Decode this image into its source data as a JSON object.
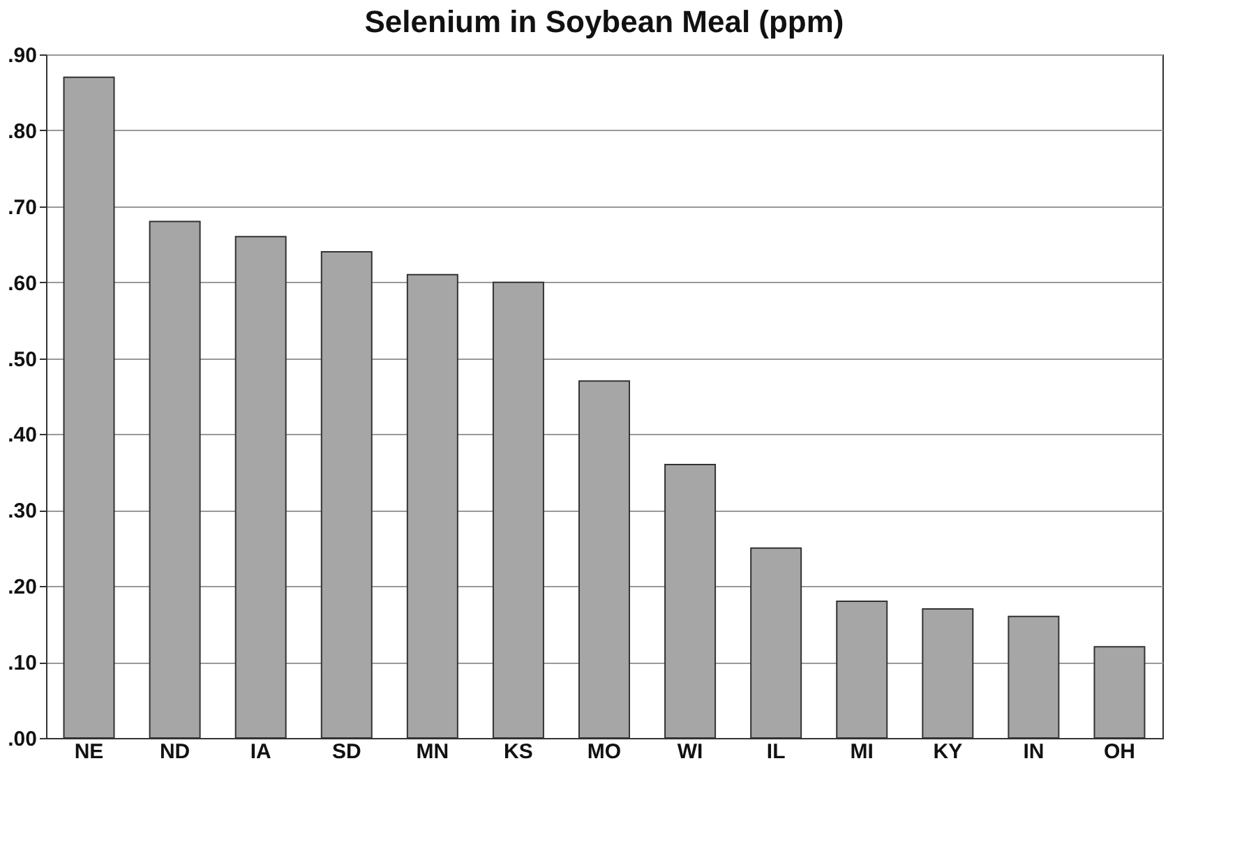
{
  "chart_data": {
    "type": "bar",
    "title": "Selenium in Soybean Meal (ppm)",
    "categories": [
      "NE",
      "ND",
      "IA",
      "SD",
      "MN",
      "KS",
      "MO",
      "WI",
      "IL",
      "MI",
      "KY",
      "IN",
      "OH"
    ],
    "values": [
      0.87,
      0.68,
      0.66,
      0.64,
      0.61,
      0.6,
      0.47,
      0.36,
      0.25,
      0.18,
      0.17,
      0.16,
      0.12
    ],
    "color": "#a6a6a6",
    "ylim": [
      0,
      0.9
    ],
    "yticks": [
      {
        "value": 0,
        "label": ".00"
      },
      {
        "value": 0.1,
        "label": ".10"
      },
      {
        "value": 0.2,
        "label": ".20"
      },
      {
        "value": 0.3,
        "label": ".30"
      },
      {
        "value": 0.4,
        "label": ".40"
      },
      {
        "value": 0.5,
        "label": ".50"
      },
      {
        "value": 0.6,
        "label": ".60"
      },
      {
        "value": 0.7,
        "label": ".70"
      },
      {
        "value": 0.8,
        "label": ".80"
      },
      {
        "value": 0.9,
        "label": ".90"
      }
    ],
    "grid": "y"
  }
}
